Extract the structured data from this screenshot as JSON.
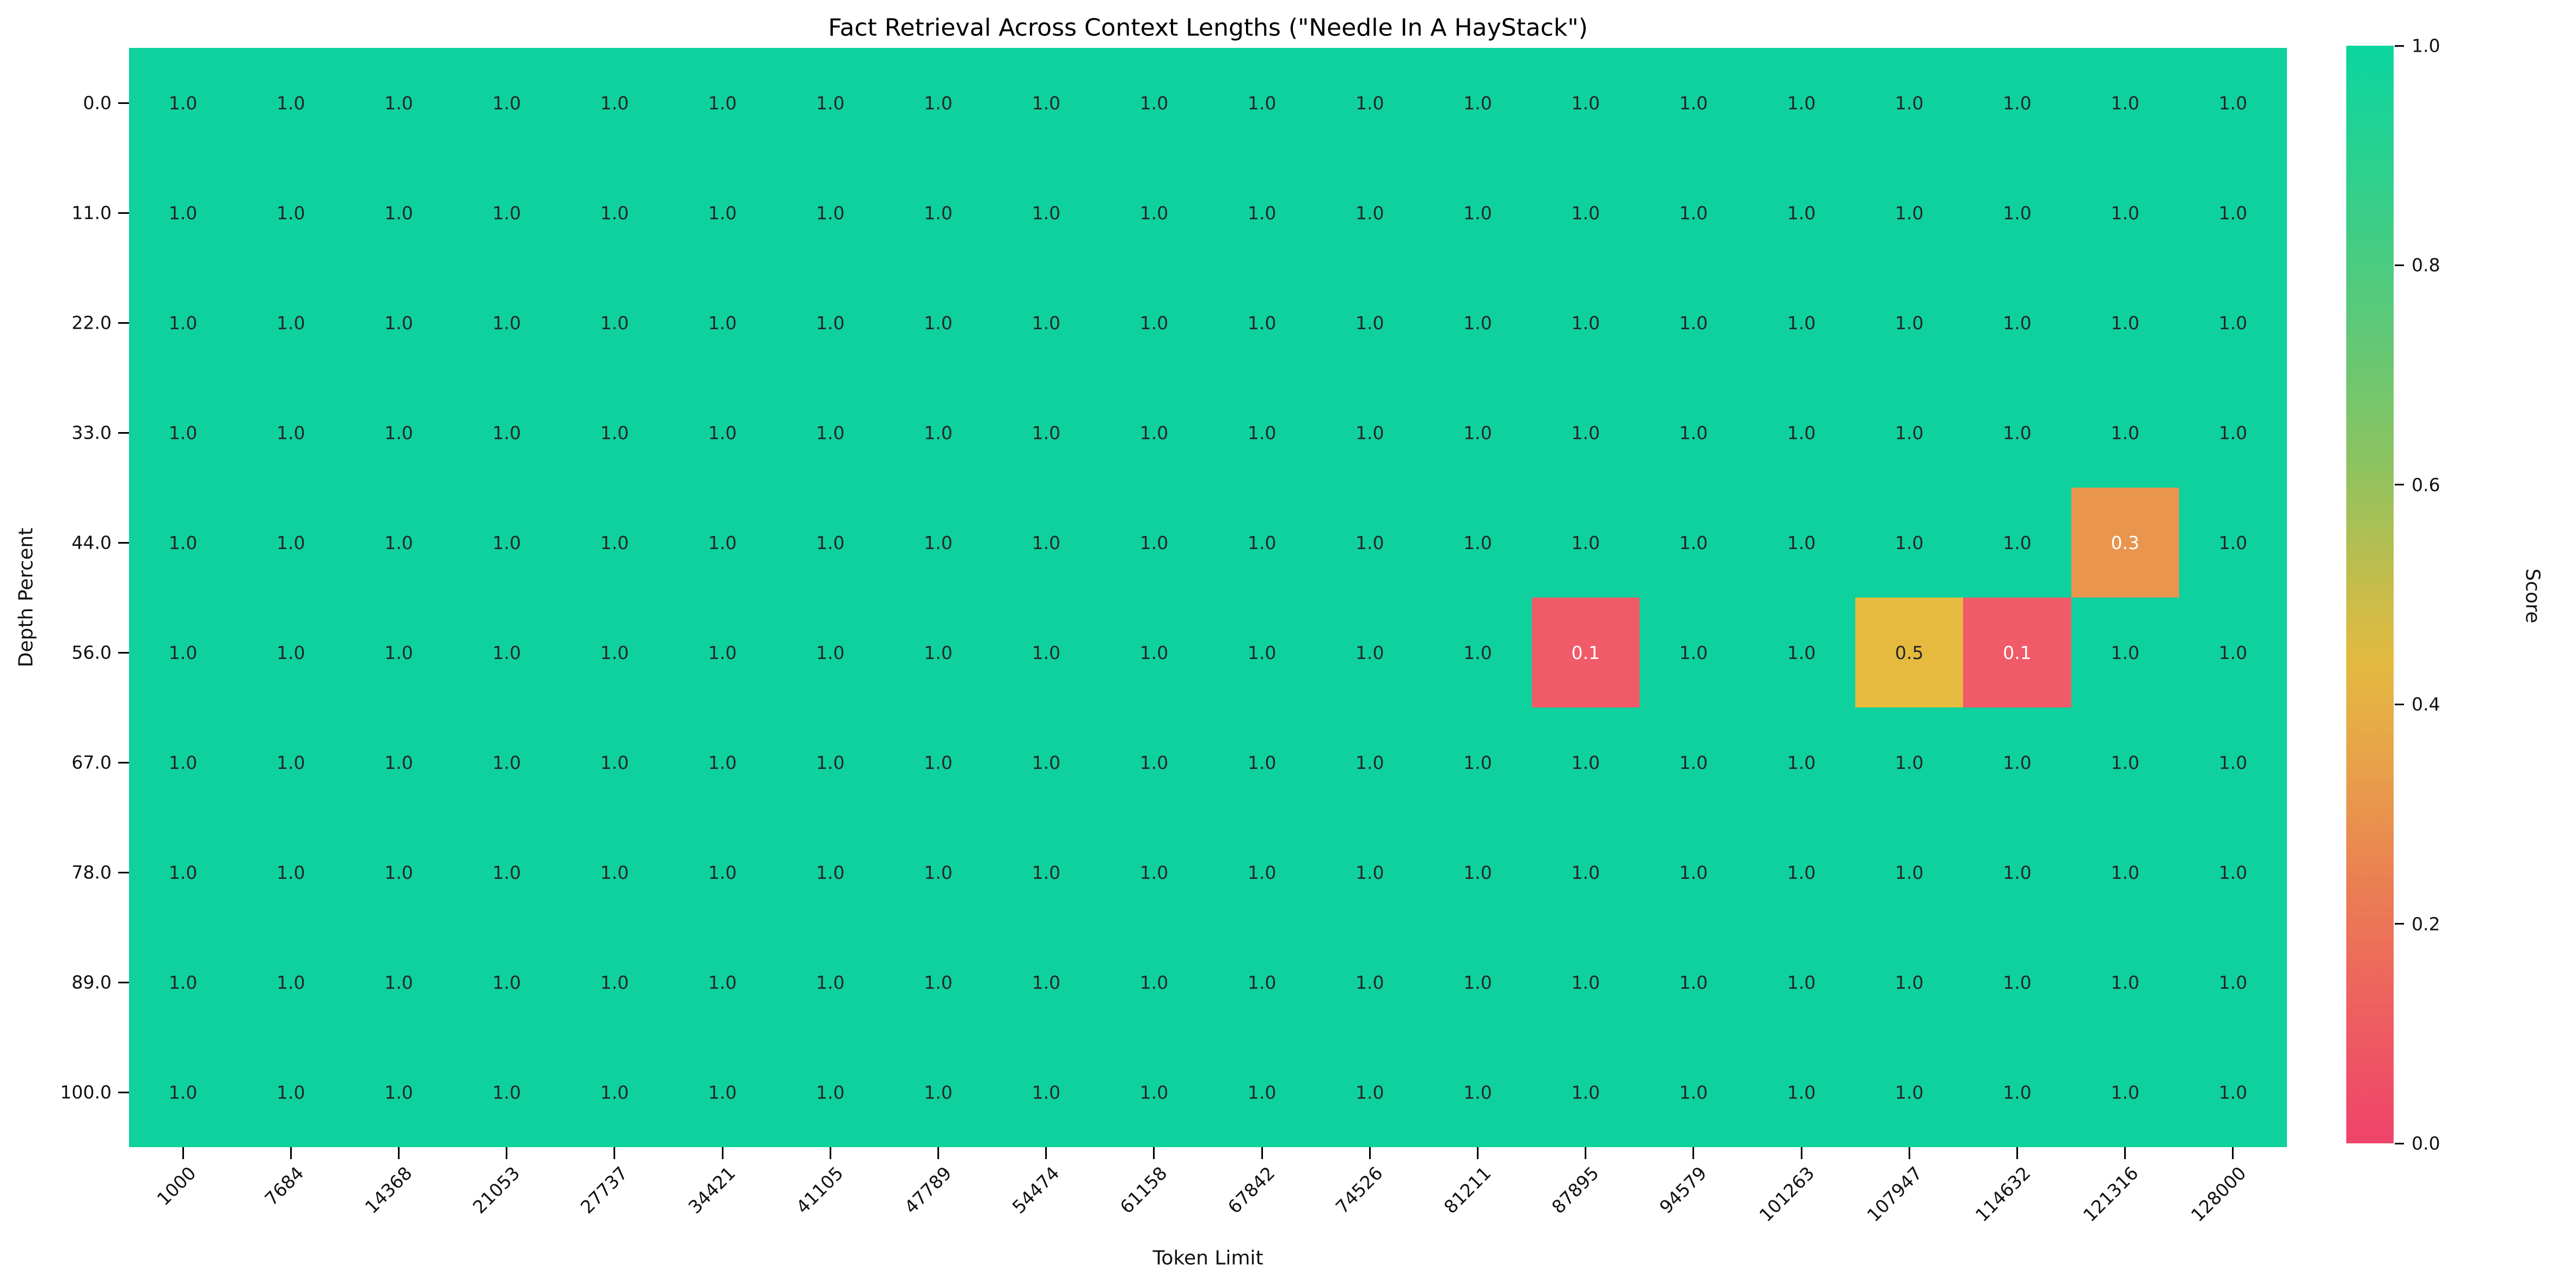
{
  "chart_data": {
    "type": "heatmap",
    "title": "Fact Retrieval Across Context Lengths (\"Needle In A HayStack\")",
    "xlabel": "Token Limit",
    "ylabel": "Depth Percent",
    "x": [
      "1000",
      "7684",
      "14368",
      "21053",
      "27737",
      "34421",
      "41105",
      "47789",
      "54474",
      "61158",
      "67842",
      "74526",
      "81211",
      "87895",
      "94579",
      "101263",
      "107947",
      "114632",
      "121316",
      "128000"
    ],
    "y": [
      "0.0",
      "11.0",
      "22.0",
      "33.0",
      "44.0",
      "56.0",
      "67.0",
      "78.0",
      "89.0",
      "100.0"
    ],
    "values": [
      [
        1.0,
        1.0,
        1.0,
        1.0,
        1.0,
        1.0,
        1.0,
        1.0,
        1.0,
        1.0,
        1.0,
        1.0,
        1.0,
        1.0,
        1.0,
        1.0,
        1.0,
        1.0,
        1.0,
        1.0
      ],
      [
        1.0,
        1.0,
        1.0,
        1.0,
        1.0,
        1.0,
        1.0,
        1.0,
        1.0,
        1.0,
        1.0,
        1.0,
        1.0,
        1.0,
        1.0,
        1.0,
        1.0,
        1.0,
        1.0,
        1.0
      ],
      [
        1.0,
        1.0,
        1.0,
        1.0,
        1.0,
        1.0,
        1.0,
        1.0,
        1.0,
        1.0,
        1.0,
        1.0,
        1.0,
        1.0,
        1.0,
        1.0,
        1.0,
        1.0,
        1.0,
        1.0
      ],
      [
        1.0,
        1.0,
        1.0,
        1.0,
        1.0,
        1.0,
        1.0,
        1.0,
        1.0,
        1.0,
        1.0,
        1.0,
        1.0,
        1.0,
        1.0,
        1.0,
        1.0,
        1.0,
        1.0,
        1.0
      ],
      [
        1.0,
        1.0,
        1.0,
        1.0,
        1.0,
        1.0,
        1.0,
        1.0,
        1.0,
        1.0,
        1.0,
        1.0,
        1.0,
        1.0,
        1.0,
        1.0,
        1.0,
        1.0,
        0.3,
        1.0
      ],
      [
        1.0,
        1.0,
        1.0,
        1.0,
        1.0,
        1.0,
        1.0,
        1.0,
        1.0,
        1.0,
        1.0,
        1.0,
        1.0,
        0.1,
        1.0,
        1.0,
        0.5,
        0.1,
        1.0,
        1.0
      ],
      [
        1.0,
        1.0,
        1.0,
        1.0,
        1.0,
        1.0,
        1.0,
        1.0,
        1.0,
        1.0,
        1.0,
        1.0,
        1.0,
        1.0,
        1.0,
        1.0,
        1.0,
        1.0,
        1.0,
        1.0
      ],
      [
        1.0,
        1.0,
        1.0,
        1.0,
        1.0,
        1.0,
        1.0,
        1.0,
        1.0,
        1.0,
        1.0,
        1.0,
        1.0,
        1.0,
        1.0,
        1.0,
        1.0,
        1.0,
        1.0,
        1.0
      ],
      [
        1.0,
        1.0,
        1.0,
        1.0,
        1.0,
        1.0,
        1.0,
        1.0,
        1.0,
        1.0,
        1.0,
        1.0,
        1.0,
        1.0,
        1.0,
        1.0,
        1.0,
        1.0,
        1.0,
        1.0
      ],
      [
        1.0,
        1.0,
        1.0,
        1.0,
        1.0,
        1.0,
        1.0,
        1.0,
        1.0,
        1.0,
        1.0,
        1.0,
        1.0,
        1.0,
        1.0,
        1.0,
        1.0,
        1.0,
        1.0,
        1.0
      ]
    ],
    "value_format_decimals": 1,
    "colorbar": {
      "label": "Score",
      "ticks": [
        "1.0",
        "0.8",
        "0.6",
        "0.4",
        "0.2",
        "0.0"
      ],
      "range": [
        0.0,
        1.0
      ]
    },
    "cell_colors": {
      "1.0": "#0ed19d",
      "0.5": "#e5ba3e",
      "0.3": "#e9954e",
      "0.1": "#f15b69"
    },
    "text_colors": {
      "dark": "#262626",
      "light": "#ffffff"
    },
    "light_text_values": [
      "0.3",
      "0.1"
    ],
    "layout_hints": {
      "grid": "off",
      "legend": "colorbar-right",
      "x_tick_rotation": 45
    }
  }
}
